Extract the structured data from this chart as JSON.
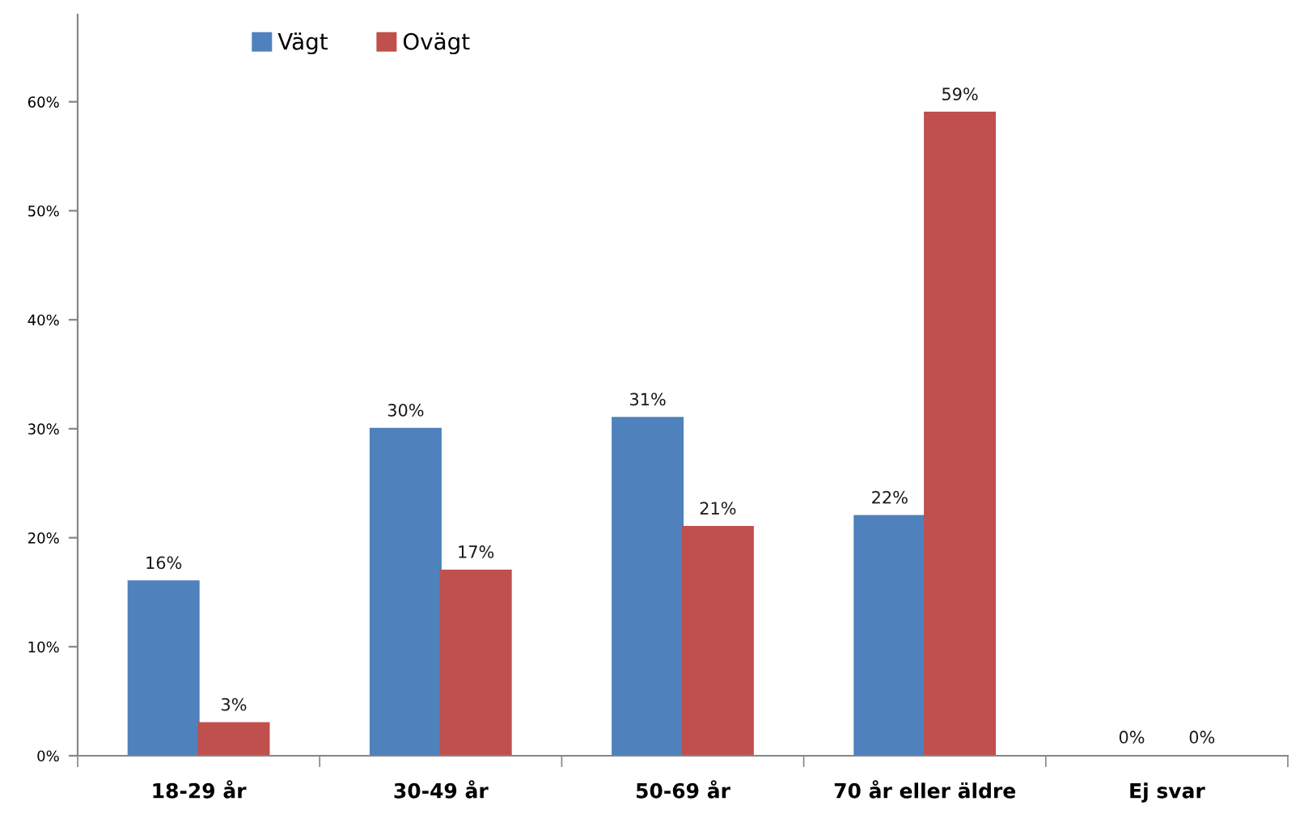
{
  "chart_data": {
    "type": "bar",
    "categories": [
      "18-29 år",
      "30-49 år",
      "50-69 år",
      "70 år eller äldre",
      "Ej svar"
    ],
    "series": [
      {
        "name": "Vägt",
        "color": "#4f81bd",
        "values": [
          16,
          30,
          31,
          22,
          0
        ],
        "value_labels": [
          "16%",
          "30%",
          "31%",
          "22%",
          "0%"
        ]
      },
      {
        "name": "Ovägt",
        "color": "#c0504d",
        "values": [
          3,
          17,
          21,
          59,
          0
        ],
        "value_labels": [
          "3%",
          "17%",
          "21%",
          "59%",
          "0%"
        ]
      }
    ],
    "ylim": [
      0,
      68
    ],
    "yticks": [
      {
        "value": 0,
        "label": "0%"
      },
      {
        "value": 10,
        "label": "10%"
      },
      {
        "value": 20,
        "label": "20%"
      },
      {
        "value": 30,
        "label": "30%"
      },
      {
        "value": 40,
        "label": "40%"
      },
      {
        "value": 50,
        "label": "50%"
      },
      {
        "value": 60,
        "label": "60%"
      }
    ],
    "grid": false,
    "legend": "top left"
  }
}
